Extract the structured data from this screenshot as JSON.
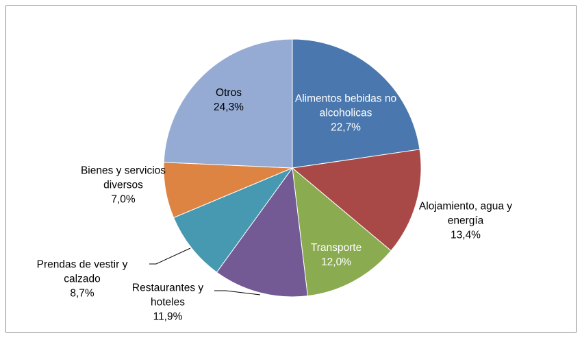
{
  "chart_data": {
    "type": "pie",
    "categories": [
      "Alimentos bebidas no alcoholicas",
      "Alojamiento, agua y energía",
      "Transporte",
      "Restaurantes y hoteles",
      "Prendas de vestir y calzado",
      "Bienes y servicios diversos",
      "Otros"
    ],
    "values": [
      22.7,
      13.4,
      12.0,
      11.9,
      8.7,
      7.0,
      24.3
    ],
    "value_labels": [
      "22,7%",
      "13,4%",
      "12,0%",
      "11,9%",
      "8,7%",
      "7,0%",
      "24,3%"
    ],
    "colors": [
      "#4a78ae",
      "#a94947",
      "#8bab50",
      "#735a94",
      "#4699b1",
      "#dd8442",
      "#95abd4"
    ]
  }
}
